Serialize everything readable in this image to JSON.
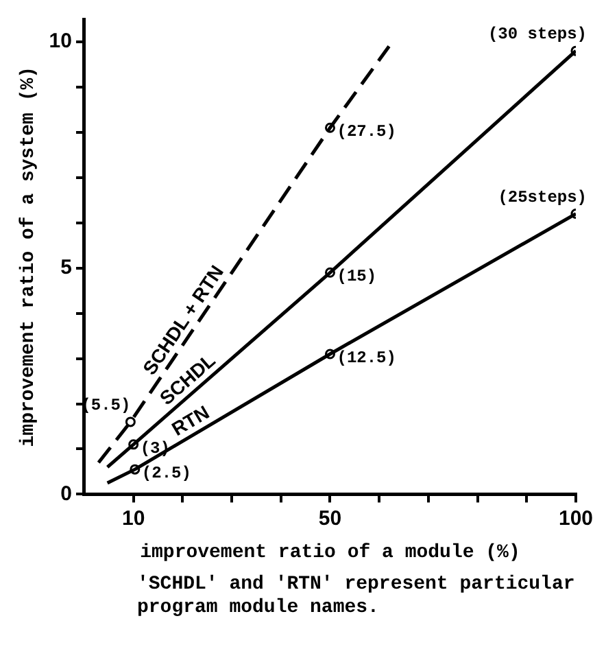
{
  "chart_data": {
    "type": "line",
    "xlabel": "improvement ratio of a module (%)",
    "ylabel": "improvement ratio of a system (%)",
    "annotations": [
      "'SCHDL' and 'RTN' represent particular program module names.",
      {
        "text": "(5.5)",
        "x": 9.4,
        "y": 1.6
      },
      {
        "text": "(27.5)",
        "x": 50,
        "y": 8.1
      },
      {
        "text": "(3)",
        "x": 10,
        "y": 1.1
      },
      {
        "text": "(15)",
        "x": 50,
        "y": 4.9
      },
      {
        "text": "(30 steps)",
        "x": 100,
        "y": 9.8
      },
      {
        "text": "(2.5)",
        "x": 10.3,
        "y": 0.55
      },
      {
        "text": "(12.5)",
        "x": 50,
        "y": 3.1
      },
      {
        "text": "(25steps)",
        "x": 100,
        "y": 6.2
      }
    ],
    "xlim": [
      0,
      100
    ],
    "ylim": [
      0,
      10.5
    ],
    "xticks": [
      {
        "value": 10,
        "label": "10"
      },
      {
        "value": 20,
        "label": null
      },
      {
        "value": 30,
        "label": null
      },
      {
        "value": 40,
        "label": null
      },
      {
        "value": 50,
        "label": "50"
      },
      {
        "value": 60,
        "label": null
      },
      {
        "value": 70,
        "label": null
      },
      {
        "value": 80,
        "label": null
      },
      {
        "value": 90,
        "label": null
      },
      {
        "value": 100,
        "label": "100"
      }
    ],
    "yticks": [
      0,
      {
        "value": 1,
        "label": null
      },
      {
        "value": 2,
        "label": null
      },
      {
        "value": 3,
        "label": null
      },
      {
        "value": 4,
        "label": null
      },
      5,
      {
        "value": 6,
        "label": null
      },
      {
        "value": 7,
        "label": null
      },
      {
        "value": 8,
        "label": null
      },
      {
        "value": 9,
        "label": null
      },
      10
    ],
    "grid": false,
    "legend": false,
    "marker": "none",
    "series": [
      {
        "name": "SCHDL + RTN",
        "color": "#000000",
        "line_style": "dashed",
        "x": [
          2.9,
          9.4,
          50,
          62
        ],
        "values": [
          0.7,
          1.6,
          8.1,
          9.9
        ]
      },
      {
        "name": "SCHDL",
        "color": "#000000",
        "line_style": "solid",
        "x": [
          4.7,
          10,
          50,
          100
        ],
        "values": [
          0.6,
          1.1,
          4.9,
          9.8
        ]
      },
      {
        "name": "RTN",
        "color": "#000000",
        "line_style": "solid",
        "x": [
          4.7,
          10.3,
          50,
          100
        ],
        "values": [
          0.25,
          0.55,
          3.1,
          6.2
        ]
      },
      {
        "type": "scatter",
        "marker": "circle",
        "color": "#000000",
        "x": [
          9.4,
          50,
          10,
          50,
          100,
          10.3,
          50,
          100
        ],
        "values": [
          1.6,
          8.1,
          1.1,
          4.9,
          9.8,
          0.55,
          3.1,
          6.2
        ]
      }
    ]
  }
}
